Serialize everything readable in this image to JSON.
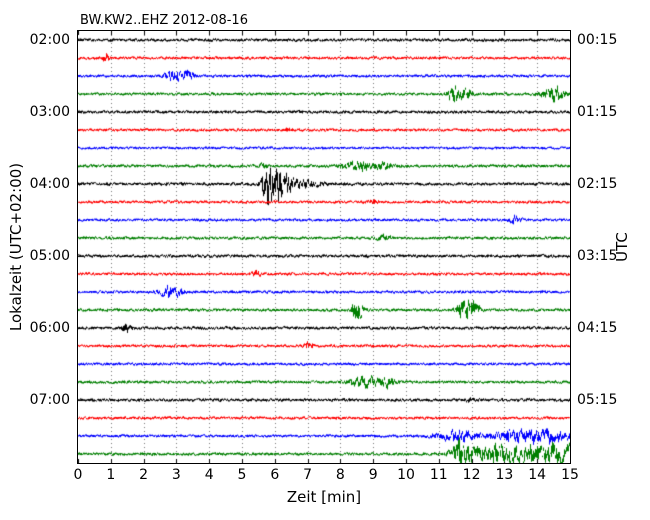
{
  "chart_data": {
    "type": "line",
    "subtype": "helicorder_dayplot",
    "title": "BW.KW2..EHZ 2012-08-16",
    "station": "BW.KW2..EHZ",
    "date": "2012-08-16",
    "xlabel": "Zeit  [min]",
    "ylabel_left": "Lokalzeit (UTC+02:00)",
    "ylabel_right": "UTC",
    "x_range": [
      0,
      15
    ],
    "minutes_per_row": 15,
    "rows": 24,
    "grid": "vertical dotted gridlines at each integer minute",
    "x_ticks": [
      "0",
      "1",
      "2",
      "3",
      "4",
      "5",
      "6",
      "7",
      "8",
      "9",
      "10",
      "11",
      "12",
      "13",
      "14",
      "15"
    ],
    "left_ticks": [
      {
        "row": 0,
        "label": "02:00"
      },
      {
        "row": 4,
        "label": "03:00"
      },
      {
        "row": 8,
        "label": "04:00"
      },
      {
        "row": 12,
        "label": "05:00"
      },
      {
        "row": 16,
        "label": "06:00"
      },
      {
        "row": 20,
        "label": "07:00"
      }
    ],
    "right_ticks": [
      {
        "row": 0,
        "label": "00:15"
      },
      {
        "row": 4,
        "label": "01:15"
      },
      {
        "row": 8,
        "label": "02:15"
      },
      {
        "row": 12,
        "label": "03:15"
      },
      {
        "row": 16,
        "label": "04:15"
      },
      {
        "row": 20,
        "label": "05:15"
      }
    ],
    "color_cycle": [
      "#000000",
      "#ff0000",
      "#0000ff",
      "#007f00"
    ],
    "traces": [
      {
        "local_start": "02:00",
        "color": "#000000",
        "base": 1.0,
        "events": []
      },
      {
        "local_start": "02:15",
        "color": "#ff0000",
        "base": 0.9,
        "events": [
          {
            "x": 0.85,
            "w": 0.06,
            "a": 4
          }
        ]
      },
      {
        "local_start": "02:30",
        "color": "#0000ff",
        "base": 0.9,
        "events": [
          {
            "x": 2.95,
            "w": 0.22,
            "a": 4
          },
          {
            "x": 3.35,
            "w": 0.12,
            "a": 2.5
          }
        ]
      },
      {
        "local_start": "02:45",
        "color": "#007f00",
        "base": 0.95,
        "events": [
          {
            "x": 11.45,
            "w": 0.13,
            "a": 6
          },
          {
            "x": 11.8,
            "w": 0.12,
            "a": 5
          },
          {
            "x": 14.5,
            "w": 0.22,
            "a": 5
          }
        ]
      },
      {
        "local_start": "03:00",
        "color": "#000000",
        "base": 1.0,
        "events": []
      },
      {
        "local_start": "03:15",
        "color": "#ff0000",
        "base": 0.9,
        "events": [
          {
            "x": 6.4,
            "w": 0.1,
            "a": 1.5
          }
        ]
      },
      {
        "local_start": "03:30",
        "color": "#0000ff",
        "base": 0.85,
        "events": []
      },
      {
        "local_start": "03:45",
        "color": "#007f00",
        "base": 0.95,
        "events": [
          {
            "x": 5.6,
            "w": 0.1,
            "a": 1.5
          },
          {
            "x": 8.55,
            "w": 0.35,
            "a": 3
          },
          {
            "x": 9.3,
            "w": 0.15,
            "a": 2.5
          }
        ]
      },
      {
        "local_start": "04:00",
        "color": "#000000",
        "base": 1.0,
        "events": [
          {
            "x": 5.75,
            "w": 0.12,
            "a": 9
          },
          {
            "x": 6.0,
            "w": 0.18,
            "a": 11
          },
          {
            "x": 6.35,
            "w": 0.2,
            "a": 5
          },
          {
            "x": 6.9,
            "w": 0.35,
            "a": 2.2
          }
        ]
      },
      {
        "local_start": "04:15",
        "color": "#ff0000",
        "base": 0.9,
        "events": [
          {
            "x": 9.0,
            "w": 0.1,
            "a": 1.5
          }
        ]
      },
      {
        "local_start": "04:30",
        "color": "#0000ff",
        "base": 0.9,
        "events": [
          {
            "x": 13.3,
            "w": 0.12,
            "a": 3
          }
        ]
      },
      {
        "local_start": "04:45",
        "color": "#007f00",
        "base": 0.95,
        "events": [
          {
            "x": 9.3,
            "w": 0.15,
            "a": 1.8
          }
        ]
      },
      {
        "local_start": "05:00",
        "color": "#000000",
        "base": 1.0,
        "events": []
      },
      {
        "local_start": "05:15",
        "color": "#ff0000",
        "base": 0.9,
        "events": [
          {
            "x": 5.4,
            "w": 0.1,
            "a": 1.6
          }
        ]
      },
      {
        "local_start": "05:30",
        "color": "#0000ff",
        "base": 0.9,
        "events": [
          {
            "x": 2.75,
            "w": 0.2,
            "a": 3.5
          },
          {
            "x": 3.1,
            "w": 0.1,
            "a": 2.2
          }
        ]
      },
      {
        "local_start": "05:45",
        "color": "#007f00",
        "base": 0.95,
        "events": [
          {
            "x": 8.5,
            "w": 0.12,
            "a": 7
          },
          {
            "x": 11.75,
            "w": 0.15,
            "a": 7
          },
          {
            "x": 12.05,
            "w": 0.12,
            "a": 5.5
          }
        ]
      },
      {
        "local_start": "06:00",
        "color": "#000000",
        "base": 1.0,
        "events": [
          {
            "x": 1.45,
            "w": 0.1,
            "a": 3.2
          }
        ]
      },
      {
        "local_start": "06:15",
        "color": "#ff0000",
        "base": 0.9,
        "events": [
          {
            "x": 7.0,
            "w": 0.1,
            "a": 2.2
          }
        ]
      },
      {
        "local_start": "06:30",
        "color": "#0000ff",
        "base": 0.9,
        "events": []
      },
      {
        "local_start": "06:45",
        "color": "#007f00",
        "base": 0.95,
        "events": [
          {
            "x": 8.75,
            "w": 0.3,
            "a": 4
          },
          {
            "x": 9.4,
            "w": 0.18,
            "a": 3
          }
        ]
      },
      {
        "local_start": "07:00",
        "color": "#000000",
        "base": 1.0,
        "events": [
          {
            "x": 12.0,
            "w": 0.1,
            "a": 1.5
          }
        ]
      },
      {
        "local_start": "07:15",
        "color": "#ff0000",
        "base": 0.9,
        "events": []
      },
      {
        "local_start": "07:30",
        "color": "#0000ff",
        "base": 0.9,
        "events": [
          {
            "x": 11.5,
            "w": 0.35,
            "a": 2.8
          },
          {
            "x": 13.6,
            "w": 0.45,
            "a": 3.5
          },
          {
            "x": 14.5,
            "w": 0.3,
            "a": 2.5
          }
        ],
        "late_noise": {
          "from": 10,
          "a": 1.2
        }
      },
      {
        "local_start": "07:45",
        "color": "#007f00",
        "base": 0.95,
        "events": [
          {
            "x": 11.65,
            "w": 0.22,
            "a": 7
          },
          {
            "x": 12.6,
            "w": 0.5,
            "a": 4
          },
          {
            "x": 13.8,
            "w": 0.7,
            "a": 4
          },
          {
            "x": 14.7,
            "w": 0.3,
            "a": 4
          }
        ],
        "late_noise": {
          "from": 11,
          "a": 2
        }
      }
    ]
  }
}
